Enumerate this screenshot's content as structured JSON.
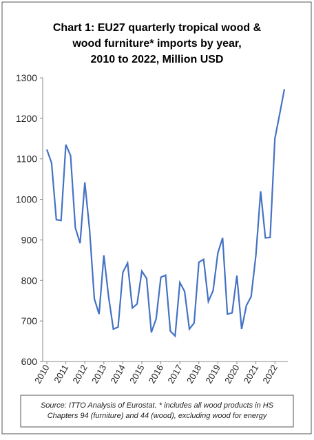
{
  "chart_data": {
    "type": "line",
    "title": [
      "Chart 1: EU27 quarterly tropical wood &",
      "wood furniture* imports by year,",
      "2010 to 2022, Million USD"
    ],
    "note": [
      "Source: ITTO Analysis of Eurostat. * includes all wood products in HS",
      "Chapters 94 (furniture) and 44 (wood), excluding wood for energy"
    ],
    "x": [
      2010,
      2010.25,
      2010.5,
      2010.75,
      2011,
      2011.25,
      2011.5,
      2011.75,
      2012,
      2012.25,
      2012.5,
      2012.75,
      2013,
      2013.25,
      2013.5,
      2013.75,
      2014,
      2014.25,
      2014.5,
      2014.75,
      2015,
      2015.25,
      2015.5,
      2015.75,
      2016,
      2016.25,
      2016.5,
      2016.75,
      2017,
      2017.25,
      2017.5,
      2017.75,
      2018,
      2018.25,
      2018.5,
      2018.75,
      2019,
      2019.25,
      2019.5,
      2019.75,
      2020,
      2020.25,
      2020.5,
      2020.75,
      2021,
      2021.25,
      2021.5,
      2021.75,
      2022,
      2022.25,
      2022.5
    ],
    "series": [
      {
        "name": "Imports",
        "color": "#4472c4",
        "values": [
          1123,
          1090,
          950,
          948,
          1135,
          1108,
          930,
          892,
          1042,
          925,
          755,
          717,
          862,
          760,
          680,
          685,
          820,
          843,
          732,
          742,
          823,
          805,
          672,
          705,
          808,
          813,
          675,
          663,
          795,
          773,
          680,
          695,
          845,
          852,
          748,
          775,
          868,
          905,
          717,
          720,
          812,
          680,
          738,
          760,
          862,
          1020,
          905,
          906,
          1150,
          1210,
          1272
        ]
      }
    ],
    "xlim": [
      2010,
      2022.5
    ],
    "xticks": [
      2010,
      2011,
      2012,
      2013,
      2014,
      2015,
      2016,
      2017,
      2018,
      2019,
      2020,
      2021,
      2022
    ],
    "ylim": [
      600,
      1300
    ],
    "yticks": [
      600,
      700,
      800,
      900,
      1000,
      1100,
      1200,
      1300
    ]
  }
}
